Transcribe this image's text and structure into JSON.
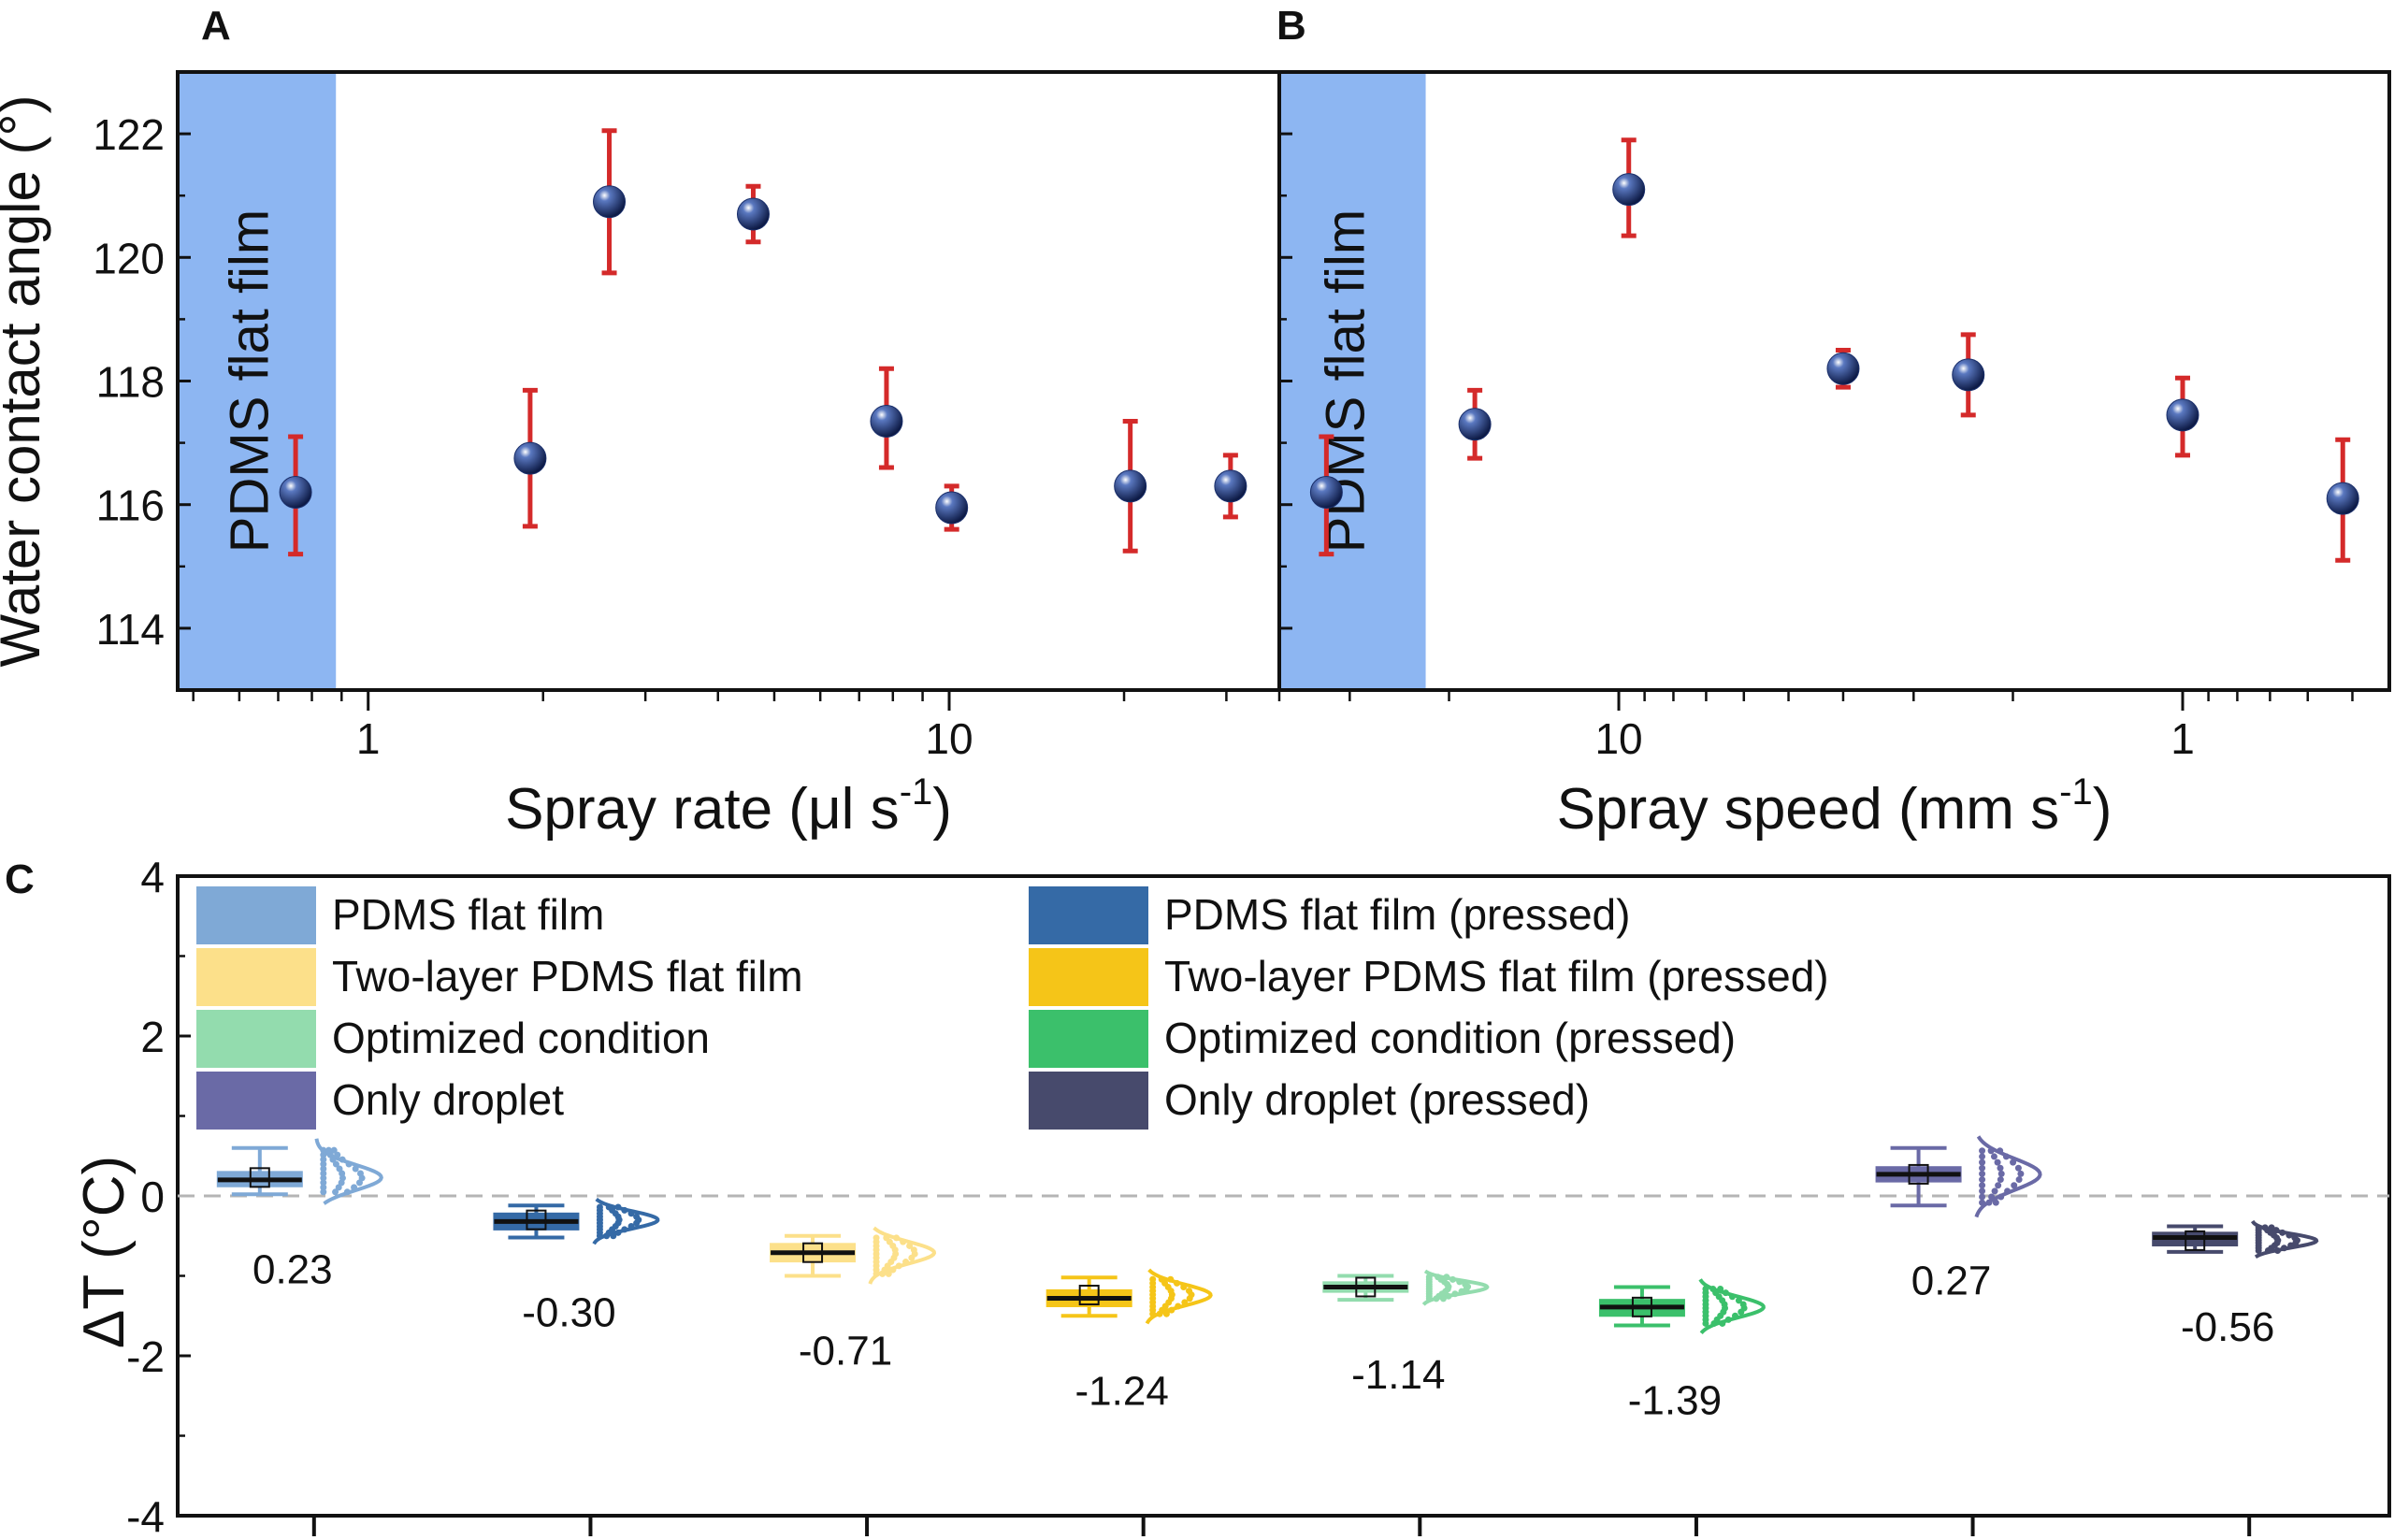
{
  "chart_data": [
    {
      "panel": "A",
      "type": "scatter",
      "ylabel": "Water contact angle (°)",
      "xlabel": "Spray rate (μl s",
      "xlabel_sup": "-1",
      "xlabel_close": ")",
      "x_scale": "log",
      "xlim": [
        0.47,
        37
      ],
      "ylim": [
        113,
        123
      ],
      "x_ticks": [
        {
          "value": 1,
          "label": "1"
        },
        {
          "value": 10,
          "label": "10"
        }
      ],
      "y_ticks": [
        {
          "value": 114,
          "label": "114"
        },
        {
          "value": 116,
          "label": "116"
        },
        {
          "value": 118,
          "label": "118"
        },
        {
          "value": 120,
          "label": "120"
        },
        {
          "value": 122,
          "label": "122"
        }
      ],
      "shaded_region": {
        "label": "PDMS flat film",
        "x_to": 0.88,
        "color": "#8db6f2"
      },
      "points": [
        {
          "x": 0.75,
          "y": 116.2,
          "lo": 115.2,
          "hi": 117.1
        },
        {
          "x": 1.9,
          "y": 116.75,
          "lo": 115.65,
          "hi": 117.85
        },
        {
          "x": 2.6,
          "y": 120.9,
          "lo": 119.75,
          "hi": 122.05
        },
        {
          "x": 4.6,
          "y": 120.7,
          "lo": 120.25,
          "hi": 121.15
        },
        {
          "x": 7.8,
          "y": 117.35,
          "lo": 116.6,
          "hi": 118.2
        },
        {
          "x": 10.1,
          "y": 115.95,
          "lo": 115.6,
          "hi": 116.3
        },
        {
          "x": 20.5,
          "y": 116.3,
          "lo": 115.25,
          "hi": 117.35
        },
        {
          "x": 30.5,
          "y": 116.3,
          "lo": 115.8,
          "hi": 116.8
        }
      ],
      "marker_color": "#1a2f6b",
      "errorbar_color": "#d42a2a"
    },
    {
      "panel": "B",
      "type": "scatter",
      "xlabel": "Spray speed (mm s",
      "xlabel_sup": "-1",
      "xlabel_close": ")",
      "x_scale": "log-reversed",
      "xlim": [
        40,
        0.43
      ],
      "ylim": [
        113,
        123
      ],
      "x_ticks": [
        {
          "value": 10,
          "label": "10"
        },
        {
          "value": 1,
          "label": "1"
        }
      ],
      "shaded_region": {
        "label": "PDMS flat film",
        "x_to": 22,
        "color": "#8db6f2"
      },
      "points": [
        {
          "x": 33,
          "y": 116.2,
          "lo": 115.2,
          "hi": 117.1
        },
        {
          "x": 18,
          "y": 117.3,
          "lo": 116.75,
          "hi": 117.85
        },
        {
          "x": 9.6,
          "y": 121.1,
          "lo": 120.35,
          "hi": 121.9
        },
        {
          "x": 4.0,
          "y": 118.2,
          "lo": 117.9,
          "hi": 118.5
        },
        {
          "x": 2.4,
          "y": 118.1,
          "lo": 117.45,
          "hi": 118.75
        },
        {
          "x": 1.0,
          "y": 117.45,
          "lo": 116.8,
          "hi": 118.05
        },
        {
          "x": 0.52,
          "y": 116.1,
          "lo": 115.1,
          "hi": 117.05
        }
      ],
      "marker_color": "#1a2f6b",
      "errorbar_color": "#d42a2a"
    },
    {
      "panel": "C",
      "type": "box",
      "ylabel": "ΔT (°C)",
      "ylim": [
        -4,
        4
      ],
      "y_ticks": [
        {
          "value": -4,
          "label": "-4"
        },
        {
          "value": -2,
          "label": "-2"
        },
        {
          "value": 0,
          "label": "0"
        },
        {
          "value": 2,
          "label": "2"
        },
        {
          "value": 4,
          "label": "4"
        }
      ],
      "reference_line": 0,
      "series": [
        {
          "name": "PDMS flat film",
          "color": "#7fa9d6",
          "mean": 0.23,
          "median": 0.2,
          "q1": 0.12,
          "q3": 0.3,
          "whisker_lo": 0.02,
          "whisker_hi": 0.6,
          "value_label": "0.23"
        },
        {
          "name": "PDMS flat film (pressed)",
          "color": "#356aa6",
          "mean": -0.3,
          "median": -0.32,
          "q1": -0.42,
          "q3": -0.22,
          "whisker_lo": -0.52,
          "whisker_hi": -0.12,
          "value_label": "-0.30"
        },
        {
          "name": "Two-layer PDMS flat film",
          "color": "#fce08a",
          "mean": -0.71,
          "median": -0.71,
          "q1": -0.82,
          "q3": -0.6,
          "whisker_lo": -1.0,
          "whisker_hi": -0.5,
          "value_label": "-0.71"
        },
        {
          "name": "Two-layer PDMS flat film (pressed)",
          "color": "#f5c518",
          "mean": -1.24,
          "median": -1.28,
          "q1": -1.38,
          "q3": -1.18,
          "whisker_lo": -1.5,
          "whisker_hi": -1.02,
          "value_label": "-1.24"
        },
        {
          "name": "Optimized condition",
          "color": "#93dcae",
          "mean": -1.14,
          "median": -1.14,
          "q1": -1.2,
          "q3": -1.08,
          "whisker_lo": -1.3,
          "whisker_hi": -1.0,
          "value_label": "-1.14"
        },
        {
          "name": "Optimized condition (pressed)",
          "color": "#3bc06b",
          "mean": -1.39,
          "median": -1.39,
          "q1": -1.5,
          "q3": -1.3,
          "whisker_lo": -1.62,
          "whisker_hi": -1.14,
          "value_label": "-1.39"
        },
        {
          "name": "Only droplet",
          "color": "#6a6aa6",
          "mean": 0.27,
          "median": 0.27,
          "q1": 0.18,
          "q3": 0.36,
          "whisker_lo": -0.12,
          "whisker_hi": 0.6,
          "value_label": "0.27"
        },
        {
          "name": "Only droplet (pressed)",
          "color": "#474a6c",
          "mean": -0.56,
          "median": -0.52,
          "q1": -0.62,
          "q3": -0.46,
          "whisker_lo": -0.7,
          "whisker_hi": -0.38,
          "value_label": "-0.56"
        }
      ],
      "legend_columns": 2,
      "legend_placement": "top"
    }
  ],
  "panel_labels": [
    "A",
    "B",
    "C"
  ]
}
